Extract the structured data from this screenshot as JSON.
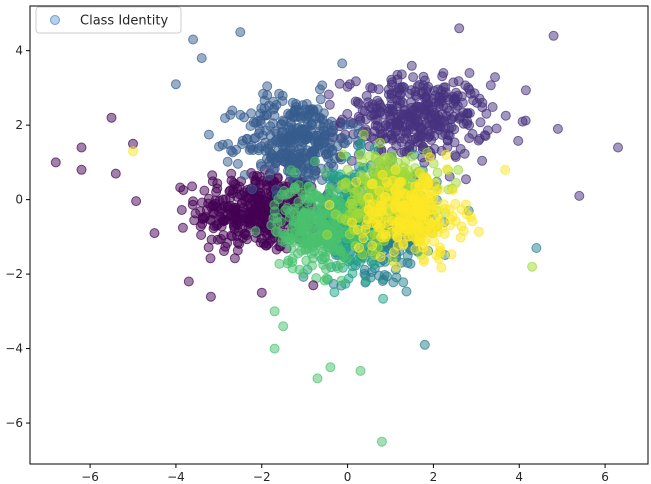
{
  "chart_data": {
    "type": "scatter",
    "title": "",
    "xlabel": "",
    "ylabel": "",
    "xlim": [
      -7.4,
      7.0
    ],
    "ylim": [
      -7.1,
      5.2
    ],
    "xticks": [
      -6,
      -4,
      -2,
      0,
      2,
      4,
      6
    ],
    "yticks": [
      -6,
      -4,
      -2,
      0,
      2,
      4
    ],
    "grid": false,
    "legend": {
      "position": "upper-left",
      "entries": [
        "Class Identity"
      ],
      "marker_color": "#6f9fd1"
    },
    "colormap": "viridis",
    "point_alpha": 0.5,
    "clusters": [
      {
        "center": [
          -2.1,
          -0.3
        ],
        "spread": [
          0.7,
          0.55
        ],
        "count": 380,
        "color": "#440154"
      },
      {
        "center": [
          1.6,
          2.2
        ],
        "spread": [
          0.85,
          0.55
        ],
        "count": 380,
        "color": "#46327e"
      },
      {
        "center": [
          -1.2,
          1.6
        ],
        "spread": [
          0.65,
          0.6
        ],
        "count": 330,
        "color": "#365c8d"
      },
      {
        "center": [
          0.9,
          -0.6
        ],
        "spread": [
          0.6,
          0.7
        ],
        "count": 300,
        "color": "#277f8e"
      },
      {
        "center": [
          0.1,
          -0.5
        ],
        "spread": [
          0.35,
          0.75
        ],
        "count": 220,
        "color": "#1fa187"
      },
      {
        "center": [
          -0.8,
          -0.7
        ],
        "spread": [
          0.45,
          0.6
        ],
        "count": 260,
        "color": "#4ac16d"
      },
      {
        "center": [
          1.0,
          0.1
        ],
        "spread": [
          0.55,
          0.6
        ],
        "count": 280,
        "color": "#a0da39"
      },
      {
        "center": [
          1.5,
          -0.4
        ],
        "spread": [
          0.6,
          0.55
        ],
        "count": 260,
        "color": "#fde725"
      }
    ],
    "outliers": [
      {
        "x": -6.8,
        "y": 1.0,
        "color": "#440154"
      },
      {
        "x": -6.2,
        "y": 0.8,
        "color": "#440154"
      },
      {
        "x": -6.2,
        "y": 1.4,
        "color": "#440154"
      },
      {
        "x": -5.5,
        "y": 2.2,
        "color": "#440154"
      },
      {
        "x": -5.4,
        "y": 0.7,
        "color": "#440154"
      },
      {
        "x": -5.0,
        "y": 1.5,
        "color": "#440154"
      },
      {
        "x": -4.5,
        "y": -0.9,
        "color": "#440154"
      },
      {
        "x": -3.7,
        "y": -2.2,
        "color": "#440154"
      },
      {
        "x": -2.0,
        "y": -2.5,
        "color": "#440154"
      },
      {
        "x": -0.8,
        "y": -2.3,
        "color": "#440154"
      },
      {
        "x": -4.0,
        "y": 3.1,
        "color": "#365c8d"
      },
      {
        "x": -3.6,
        "y": 4.3,
        "color": "#365c8d"
      },
      {
        "x": -2.5,
        "y": 4.5,
        "color": "#365c8d"
      },
      {
        "x": -3.4,
        "y": 3.8,
        "color": "#365c8d"
      },
      {
        "x": 2.6,
        "y": 4.6,
        "color": "#46327e"
      },
      {
        "x": 4.8,
        "y": 4.4,
        "color": "#46327e"
      },
      {
        "x": 6.3,
        "y": 1.4,
        "color": "#46327e"
      },
      {
        "x": 5.4,
        "y": 0.1,
        "color": "#46327e"
      },
      {
        "x": 4.9,
        "y": 1.9,
        "color": "#46327e"
      },
      {
        "x": 4.4,
        "y": -1.3,
        "color": "#277f8e"
      },
      {
        "x": 1.8,
        "y": -3.9,
        "color": "#277f8e"
      },
      {
        "x": 0.8,
        "y": -6.5,
        "color": "#4ac16d"
      },
      {
        "x": -0.7,
        "y": -4.8,
        "color": "#4ac16d"
      },
      {
        "x": -0.4,
        "y": -4.5,
        "color": "#4ac16d"
      },
      {
        "x": 0.3,
        "y": -4.6,
        "color": "#4ac16d"
      },
      {
        "x": -1.7,
        "y": -4.0,
        "color": "#4ac16d"
      },
      {
        "x": -1.5,
        "y": -3.4,
        "color": "#4ac16d"
      },
      {
        "x": -1.7,
        "y": -3.0,
        "color": "#4ac16d"
      },
      {
        "x": 4.3,
        "y": -1.8,
        "color": "#a0da39"
      },
      {
        "x": -5.0,
        "y": 1.3,
        "color": "#fde725"
      }
    ]
  }
}
